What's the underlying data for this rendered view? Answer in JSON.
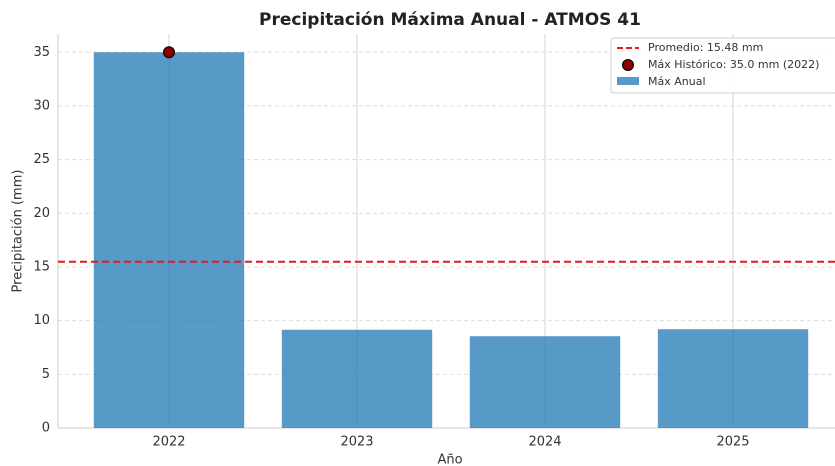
{
  "chart_data": {
    "type": "bar",
    "title": "Precipitación Máxima Anual - ATMOS 41",
    "x_label": "Año",
    "y_label": "Precipitación (mm)",
    "categories": [
      "2022",
      "2023",
      "2024",
      "2025"
    ],
    "series": [
      {
        "name": "Máx Anual",
        "color": "#1f77b4",
        "values": [
          35.0,
          9.15,
          8.55,
          9.2
        ]
      }
    ],
    "reference_line": {
      "name": "Promedio: 15.48 mm",
      "value": 15.48,
      "color": "#e31a1c"
    },
    "highlight": {
      "name": "Máx Histórico: 35.0 mm (2022)",
      "x": "2022",
      "value": 35.0,
      "color": "#8b0000"
    },
    "ylim": [
      0,
      36.7
    ],
    "yticks": [
      0,
      5,
      10,
      15,
      20,
      25,
      30,
      35
    ],
    "grid": true,
    "legend": "upper right"
  }
}
